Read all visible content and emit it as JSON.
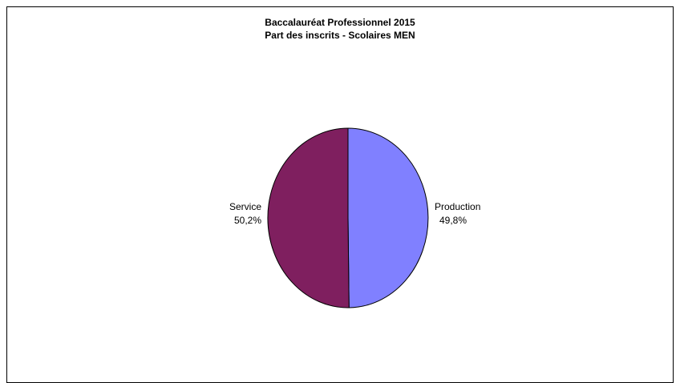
{
  "chart_data": {
    "type": "pie",
    "title": "Baccalauréat Professionnel 2015",
    "subtitle": "Part des inscrits - Scolaires MEN",
    "slices": [
      {
        "label": "Production",
        "value": 49.8,
        "value_label": "49,8%",
        "color": "#8080FF"
      },
      {
        "label": "Service",
        "value": 50.2,
        "value_label": "50,2%",
        "color": "#7F1F5F"
      }
    ],
    "start_angle_deg": 0,
    "direction": "clockwise",
    "legend": "none",
    "data_labels": "outside"
  }
}
